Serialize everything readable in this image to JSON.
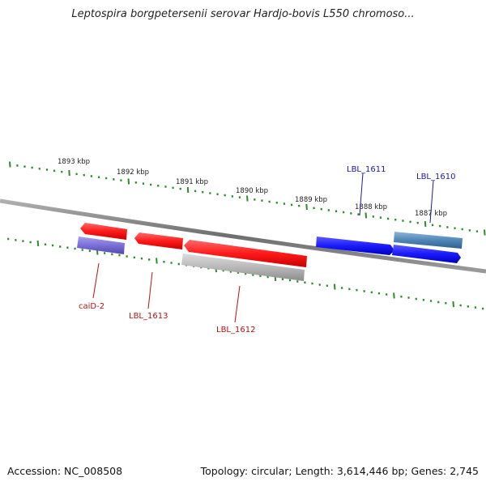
{
  "title": "Leptospira borgpetersenii serovar Hardjo-bovis L550 chromoso...",
  "footer": {
    "accession": "Accession: NC_008508",
    "summary": "Topology: circular; Length: 3,614,446 bp; Genes: 2,745"
  },
  "colors": {
    "backbone": "#8a8a8a",
    "tick": "#2e8b2e",
    "forward_gene": "#1a1aff",
    "reverse_gene": "#ff1a1a",
    "forward_label": "#1a1aaa",
    "reverse_label": "#bb1111",
    "cds_forward": "#4f86b8",
    "cds_reverse": "#7a6fd6",
    "pseudo": "#b8b8b8"
  },
  "scale_labels": [
    "1893 kbp",
    "1892 kbp",
    "1891 kbp",
    "1890 kbp",
    "1889 kbp",
    "1888 kbp",
    "1887 kbp"
  ],
  "genes": [
    {
      "name": "LBL_1611",
      "strand": "forward"
    },
    {
      "name": "LBL_1610",
      "strand": "forward"
    },
    {
      "name": "caiD-2",
      "strand": "reverse"
    },
    {
      "name": "LBL_1613",
      "strand": "reverse"
    },
    {
      "name": "LBL_1612",
      "strand": "reverse"
    }
  ]
}
